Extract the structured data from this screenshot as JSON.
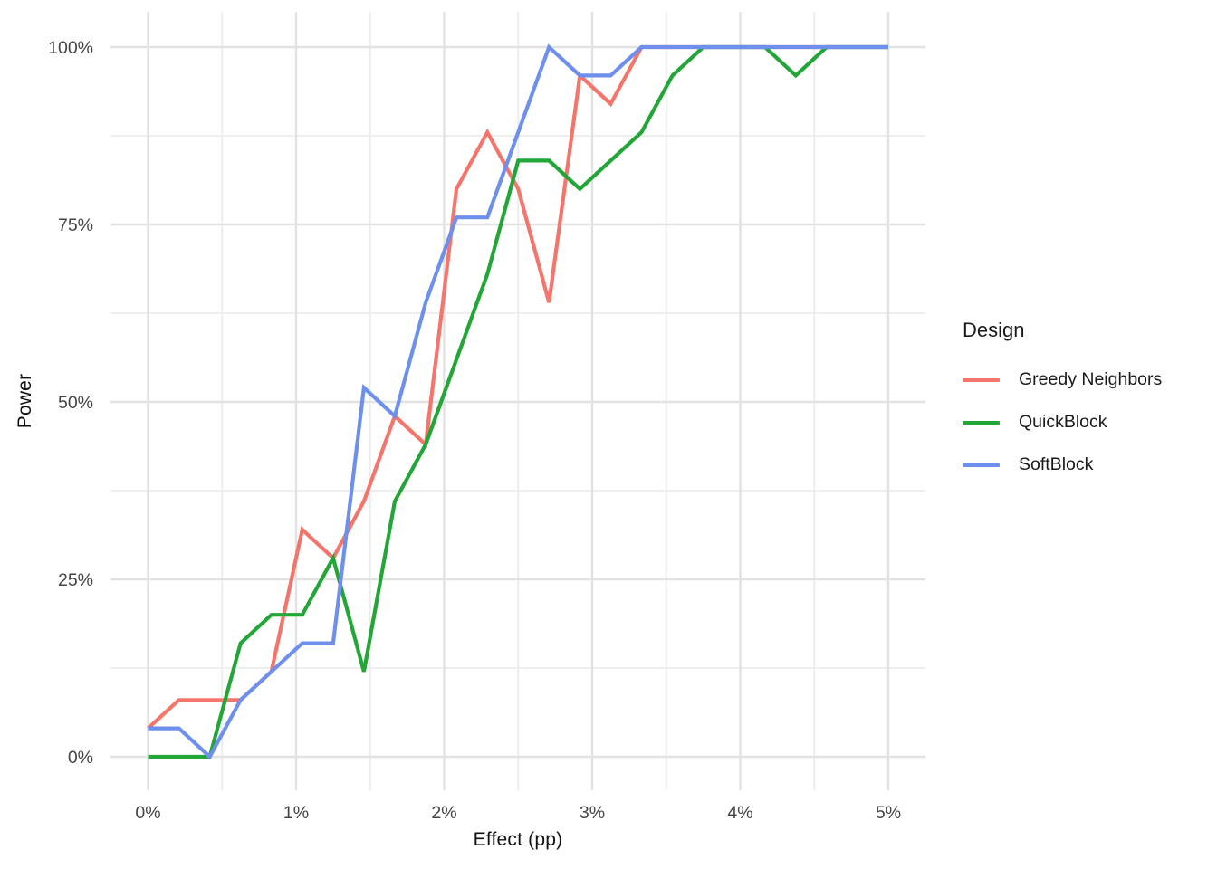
{
  "figure": {
    "background": "#FFFFFF"
  },
  "axis": {
    "x_title": "Effect (pp)",
    "y_title": "Power"
  },
  "legend": {
    "title": "Design"
  },
  "chart_data": {
    "type": "line",
    "title": "",
    "xlabel": "Effect (pp)",
    "ylabel": "Power",
    "xlim": [
      0,
      5
    ],
    "ylim": [
      0,
      100
    ],
    "grid": true,
    "legend_position": "right",
    "legend_title": "Design",
    "x_ticks": [
      0,
      1,
      2,
      3,
      4,
      5
    ],
    "x_tick_labels": [
      "0%",
      "1%",
      "2%",
      "3%",
      "4%",
      "5%"
    ],
    "y_ticks": [
      0,
      25,
      50,
      75,
      100
    ],
    "y_tick_labels": [
      "0%",
      "25%",
      "50%",
      "75%",
      "100%"
    ],
    "minor_x_ticks": [
      0.5,
      1.5,
      2.5,
      3.5,
      4.5
    ],
    "minor_y_ticks": [
      12.5,
      37.5,
      62.5,
      87.5
    ],
    "x": [
      0,
      0.2083,
      0.4167,
      0.625,
      0.8333,
      1.0417,
      1.25,
      1.4583,
      1.6667,
      1.875,
      2.0833,
      2.2917,
      2.5,
      2.7083,
      2.9167,
      3.125,
      3.3333,
      3.5417,
      3.75,
      3.9583,
      4.1667,
      4.375,
      4.5833,
      4.7917,
      5
    ],
    "series": [
      {
        "name": "Greedy Neighbors",
        "color": "#F3756B",
        "values": [
          4,
          8,
          8,
          8,
          12,
          32,
          28,
          36,
          48,
          44,
          80,
          88,
          80,
          64,
          96,
          92,
          100,
          100,
          100,
          100,
          100,
          100,
          100,
          100,
          100
        ]
      },
      {
        "name": "QuickBlock",
        "color": "#23A638",
        "values": [
          0,
          0,
          0,
          16,
          20,
          20,
          28,
          12,
          36,
          44,
          56,
          68,
          84,
          84,
          80,
          84,
          88,
          96,
          100,
          100,
          100,
          96,
          100,
          100,
          100
        ]
      },
      {
        "name": "SoftBlock",
        "color": "#6E8FEB",
        "values": [
          4,
          4,
          0,
          8,
          12,
          16,
          16,
          52,
          48,
          64,
          76,
          76,
          88,
          100,
          96,
          96,
          100,
          100,
          100,
          100,
          100,
          100,
          100,
          100,
          100
        ]
      }
    ],
    "colors": {
      "grid_major": "#E2E2E2",
      "grid_minor": "#ECECEC",
      "tick_label": "#444444",
      "axis_title": "#111111"
    }
  }
}
